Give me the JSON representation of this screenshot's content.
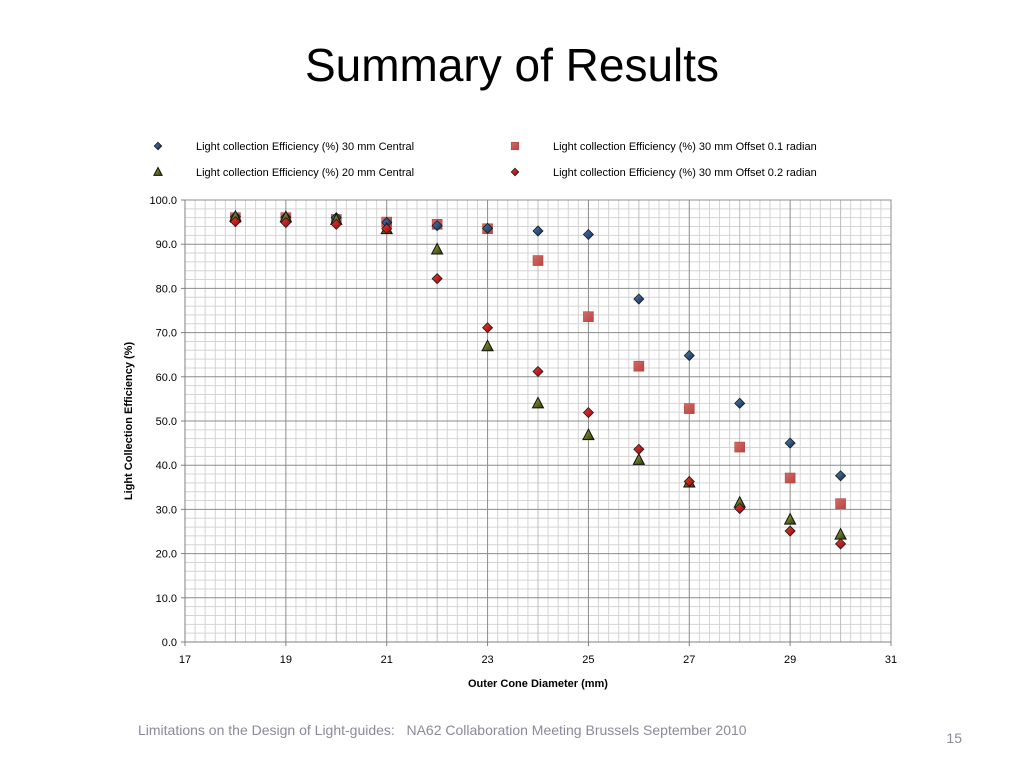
{
  "slide": {
    "title": "Summary of Results",
    "footer": "Limitations on the Design of Light-guides:   NA62 Collaboration Meeting Brussels September 2010",
    "page_number": "15"
  },
  "chart_data": {
    "type": "scatter",
    "title": "",
    "xlabel": "Outer Cone Diameter (mm)",
    "ylabel": "Light Collection Efficiency (%)",
    "xlim": [
      17,
      31
    ],
    "ylim": [
      0,
      100
    ],
    "x_ticks": [
      "17",
      "19",
      "21",
      "23",
      "25",
      "27",
      "29",
      "31"
    ],
    "y_ticks": [
      "0.0",
      "10.0",
      "20.0",
      "30.0",
      "40.0",
      "50.0",
      "60.0",
      "70.0",
      "80.0",
      "90.0",
      "100.0"
    ],
    "grid": true,
    "legend_position": "top",
    "series": [
      {
        "name": "Light collection Efficiency (%) 30 mm Central",
        "marker": "diamond",
        "color": "#0f2a4a",
        "x": [
          18,
          19,
          20,
          21,
          22,
          23,
          24,
          25,
          26,
          27,
          28,
          29,
          30
        ],
        "y": [
          96.2,
          96.1,
          96.0,
          94.9,
          94.2,
          93.6,
          93.0,
          92.2,
          77.6,
          64.8,
          54.0,
          45.0,
          37.6
        ]
      },
      {
        "name": "Light collection Efficiency (%) 30 mm Offset 0.1 radian",
        "marker": "square",
        "color": "#c0504d",
        "x": [
          18,
          19,
          20,
          21,
          22,
          23,
          24,
          25,
          26,
          27,
          28,
          29,
          30
        ],
        "y": [
          96.0,
          96.0,
          95.6,
          95.0,
          94.5,
          93.5,
          86.3,
          73.6,
          62.4,
          52.8,
          44.1,
          37.1,
          31.3
        ]
      },
      {
        "name": "Light collection Efficiency (%) 20 mm Central",
        "marker": "triangle",
        "color": "#3d4a0e",
        "x": [
          18,
          19,
          20,
          21,
          22,
          23,
          24,
          25,
          26,
          27,
          28,
          29,
          30
        ],
        "y": [
          96.2,
          96.1,
          95.5,
          93.4,
          88.8,
          66.9,
          54.0,
          46.8,
          41.2,
          36.1,
          31.5,
          27.7,
          24.3
        ]
      },
      {
        "name": "Light collection Efficiency (%) 30 mm Offset 0.2 radian",
        "marker": "diamond",
        "color": "#c00000",
        "x": [
          18,
          19,
          20,
          21,
          22,
          23,
          24,
          25,
          26,
          27,
          28,
          29,
          30
        ],
        "y": [
          95.1,
          94.9,
          94.5,
          93.5,
          82.2,
          71.1,
          61.2,
          51.9,
          43.6,
          36.3,
          30.2,
          25.1,
          22.2
        ]
      }
    ]
  }
}
